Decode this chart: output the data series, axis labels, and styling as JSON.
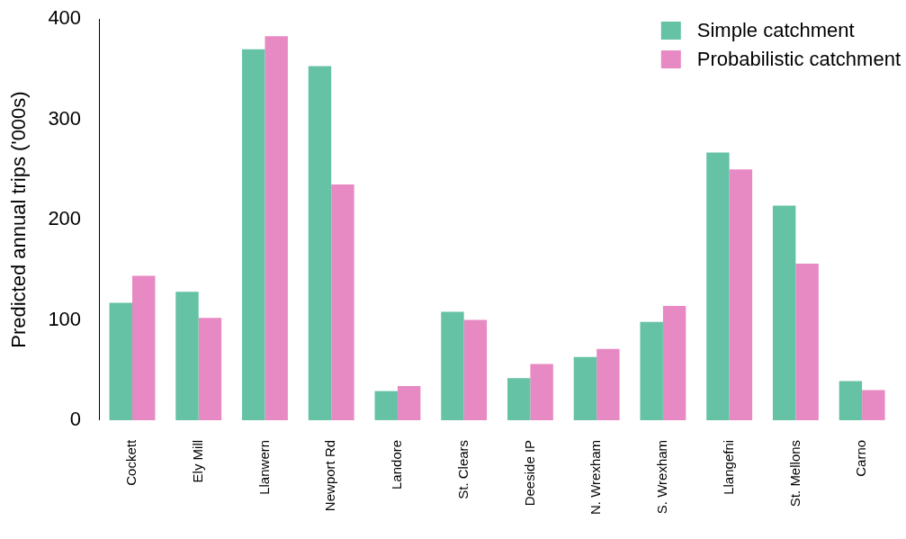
{
  "chart_data": {
    "type": "bar",
    "ylabel": "Predicted annual trips ('000s)",
    "categories": [
      "Cockett",
      "Ely Mill",
      "Llanwern",
      "Newport Rd",
      "Landore",
      "St. Clears",
      "Deeside IP",
      "N. Wrexham",
      "S. Wrexham",
      "Llangefni",
      "St. Mellons",
      "Carno"
    ],
    "series": [
      {
        "name": "Simple catchment",
        "color": "#66c2a5",
        "values": [
          117,
          128,
          370,
          353,
          29,
          108,
          42,
          63,
          98,
          267,
          214,
          39
        ]
      },
      {
        "name": "Probabilistic catchment",
        "color": "#e78ac3",
        "values": [
          144,
          102,
          383,
          235,
          34,
          100,
          56,
          71,
          114,
          250,
          156,
          30
        ]
      }
    ],
    "ylim": [
      0,
      400
    ],
    "yticks": [
      0,
      100,
      200,
      300,
      400
    ],
    "grid": false,
    "legend": "top right"
  }
}
